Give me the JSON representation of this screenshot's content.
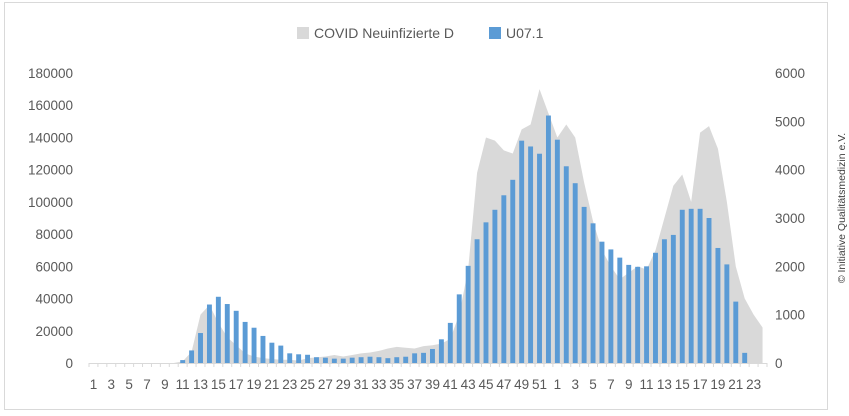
{
  "chart_data": {
    "type": "bar",
    "title": "",
    "xlabel": "",
    "ylabel": "",
    "legend_position": "top",
    "grid": false,
    "x_tick_labels": [
      "1",
      "3",
      "5",
      "7",
      "9",
      "11",
      "13",
      "15",
      "17",
      "19",
      "21",
      "23",
      "25",
      "27",
      "29",
      "31",
      "33",
      "35",
      "37",
      "39",
      "41",
      "43",
      "45",
      "47",
      "49",
      "51",
      "1",
      "3",
      "5",
      "7",
      "9",
      "11",
      "13",
      "15",
      "17",
      "19",
      "21",
      "23"
    ],
    "y_left": {
      "min": 0,
      "max": 180000,
      "step": 20000,
      "ticks": [
        "0",
        "20000",
        "40000",
        "60000",
        "80000",
        "100000",
        "120000",
        "140000",
        "160000",
        "180000"
      ]
    },
    "y_right": {
      "min": 0,
      "max": 6000,
      "step": 1000,
      "ticks": [
        "0",
        "1000",
        "2000",
        "3000",
        "4000",
        "5000",
        "6000"
      ]
    },
    "series": [
      {
        "name": "COVID Neuinfizierte D",
        "kind": "area",
        "axis": "left",
        "color": "#d9d9d9",
        "values": [
          0,
          0,
          0,
          0,
          0,
          0,
          0,
          0,
          0,
          0,
          1000,
          7000,
          30000,
          36000,
          25000,
          16000,
          11000,
          6000,
          4000,
          3000,
          2500,
          2000,
          2000,
          1500,
          3000,
          3500,
          4000,
          5000,
          4000,
          5000,
          6000,
          6500,
          7500,
          9000,
          10000,
          9500,
          9000,
          10500,
          11000,
          12000,
          15000,
          30000,
          58000,
          118000,
          140000,
          138000,
          132000,
          130000,
          145000,
          148000,
          170000,
          155000,
          140000,
          148000,
          140000,
          112000,
          88000,
          70000,
          60000,
          52000,
          56000,
          60000,
          58000,
          70000,
          90000,
          110000,
          117000,
          100000,
          143000,
          147000,
          133000,
          100000,
          60000,
          40000,
          30000,
          22000
        ]
      },
      {
        "name": "U07.1",
        "kind": "bar",
        "axis": "right",
        "color": "#5b9bd5",
        "values": [
          0,
          0,
          0,
          0,
          0,
          0,
          0,
          0,
          0,
          0,
          60,
          260,
          620,
          1210,
          1370,
          1220,
          1080,
          850,
          730,
          560,
          420,
          360,
          200,
          180,
          170,
          120,
          110,
          90,
          90,
          110,
          120,
          130,
          120,
          100,
          120,
          130,
          200,
          210,
          290,
          490,
          830,
          1420,
          2010,
          2560,
          2910,
          3170,
          3470,
          3790,
          4600,
          4480,
          4330,
          5120,
          4620,
          4070,
          3720,
          3230,
          2890,
          2510,
          2350,
          2180,
          2030,
          1990,
          2000,
          2280,
          2560,
          2650,
          3170,
          3190,
          3190,
          3000,
          2380,
          2040,
          1270,
          210
        ]
      }
    ]
  },
  "copyright": "© Initiative Qualitätsmedizin e.V."
}
